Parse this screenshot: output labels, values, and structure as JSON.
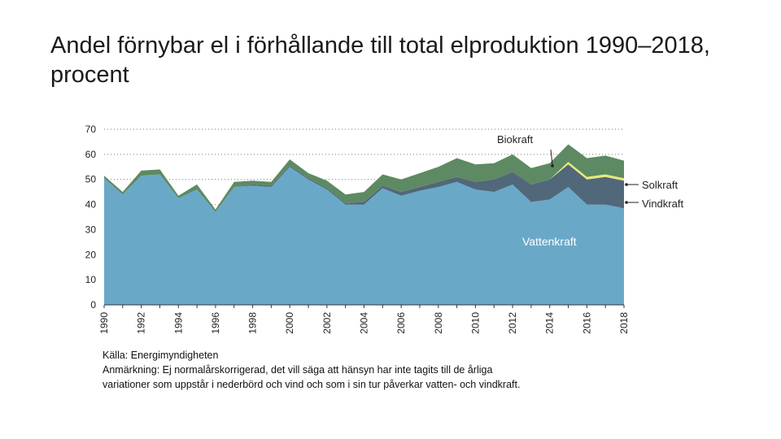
{
  "title": "Andel förnybar el i förhållande till total elproduktion 1990–2018, procent",
  "source": "Källa: Energimyndigheten",
  "note_line1": "Anmärkning:  Ej normalårskorrigerad, det vill säga att hänsyn har inte tagits till de årliga",
  "note_line2": "variationer som uppstår i nederbörd och vind och som i sin tur påverkar vatten- och vindkraft.",
  "colors": {
    "vattenkraft": "#6aa8c8",
    "vindkraft": "#51677a",
    "solkraft": "#e8e87a",
    "biokraft": "#5d8a62"
  },
  "chart_data": {
    "type": "area",
    "stacked": true,
    "x": [
      1990,
      1991,
      1992,
      1993,
      1994,
      1995,
      1996,
      1997,
      1998,
      1999,
      2000,
      2001,
      2002,
      2003,
      2004,
      2005,
      2006,
      2007,
      2008,
      2009,
      2010,
      2011,
      2012,
      2013,
      2014,
      2015,
      2016,
      2017,
      2018
    ],
    "series": [
      {
        "name": "Vattenkraft",
        "values": [
          50.5,
          44,
          51.5,
          52,
          42.5,
          46,
          37,
          47,
          47.5,
          47,
          55,
          50,
          46,
          40,
          40,
          46.5,
          43.5,
          45.5,
          47,
          49,
          46,
          45,
          48,
          41,
          42,
          47,
          40,
          40,
          38.5
        ]
      },
      {
        "name": "Vindkraft",
        "values": [
          0,
          0,
          0,
          0,
          0,
          0,
          0,
          0,
          0.5,
          0.5,
          0.5,
          0.5,
          0.5,
          0.5,
          1,
          1,
          1.5,
          1.5,
          2,
          2,
          3,
          5,
          5,
          7,
          8,
          9,
          10,
          11,
          11
        ]
      },
      {
        "name": "Solkraft",
        "values": [
          0,
          0,
          0,
          0,
          0,
          0,
          0,
          0,
          0,
          0,
          0,
          0,
          0,
          0,
          0,
          0,
          0,
          0,
          0,
          0,
          0,
          0,
          0,
          0,
          0,
          1,
          1,
          1,
          1
        ]
      },
      {
        "name": "Biokraft",
        "values": [
          1,
          1,
          2,
          2,
          1,
          2,
          1,
          2,
          1.5,
          1.5,
          2.5,
          2,
          3,
          3.5,
          4,
          4.5,
          5,
          5.5,
          6,
          7.5,
          7,
          6.5,
          7,
          6.5,
          6.5,
          7,
          7.5,
          7.5,
          7
        ]
      }
    ],
    "ylim": [
      0,
      70
    ],
    "yticks": [
      0,
      10,
      20,
      30,
      40,
      50,
      60,
      70
    ],
    "xtick_labels": [
      "1990",
      "1992",
      "1994",
      "1996",
      "1998",
      "2000",
      "2002",
      "2004",
      "2006",
      "2008",
      "2010",
      "2012",
      "2014",
      "2016",
      "2018"
    ],
    "labels": {
      "biokraft": "Biokraft",
      "solkraft": "Solkraft",
      "vindkraft": "Vindkraft",
      "vattenkraft": "Vattenkraft"
    }
  }
}
